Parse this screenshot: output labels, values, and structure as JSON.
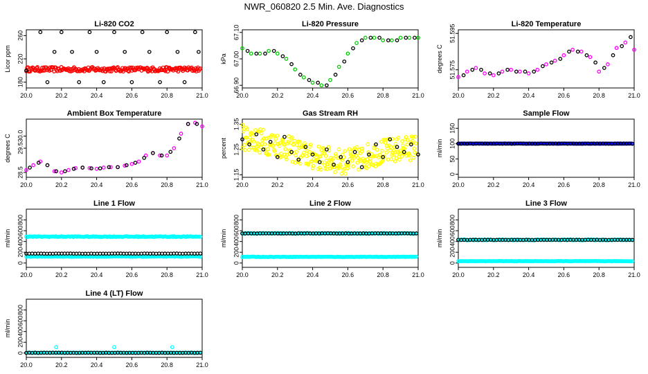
{
  "page_title": "NWR_060820  2.5 Min. Ave. Diagnostics",
  "colors": {
    "black": "#000000",
    "red": "#ff0000",
    "green": "#00cc00",
    "magenta": "#ff00ff",
    "yellow": "#ffff00",
    "blue": "#0000ff",
    "cyan": "#00ffff"
  },
  "chart_data": [
    {
      "id": "co2",
      "type": "scatter",
      "title": "Li-820 CO2",
      "ylabel": "Licor ppm",
      "xlim": [
        20.0,
        21.0
      ],
      "ylim": [
        170,
        270
      ],
      "yticks": [
        180,
        220,
        260
      ],
      "ytick_labels": [
        "180",
        "220",
        "260"
      ],
      "xticks": [
        20.0,
        20.2,
        20.4,
        20.6,
        20.8,
        21.0
      ],
      "xtick_labels": [
        "20.0",
        "20.2",
        "20.4",
        "20.6",
        "20.8",
        "21.0"
      ],
      "series": [
        {
          "color": "red",
          "marker": "circle",
          "n": 220,
          "y_center": 202,
          "y_spread": 4
        },
        {
          "color": "black",
          "marker": "circle",
          "x": [
            20.0,
            20.08,
            20.12,
            20.16,
            20.2,
            20.26,
            20.3,
            20.36,
            20.4,
            20.44,
            20.5,
            20.56,
            20.6,
            20.66,
            20.7,
            20.76,
            20.8,
            20.86,
            20.9,
            20.96,
            20.98
          ],
          "y": [
            200,
            266,
            180,
            232,
            266,
            232,
            180,
            266,
            232,
            180,
            266,
            232,
            180,
            266,
            232,
            180,
            266,
            232,
            180,
            266,
            232
          ]
        }
      ]
    },
    {
      "id": "pressure",
      "type": "scatter",
      "title": "Li-820 Pressure",
      "ylabel": "kPa",
      "xlim": [
        20.0,
        21.0
      ],
      "ylim": [
        66.89,
        67.11
      ],
      "yticks": [
        66.9,
        67.0,
        67.1
      ],
      "ytick_labels": [
        "66.90",
        "67.00",
        "67.10"
      ],
      "xticks": [
        20.0,
        20.2,
        20.4,
        20.6,
        20.8,
        21.0
      ],
      "xtick_labels": [
        "20.0",
        "20.2",
        "20.4",
        "20.6",
        "20.8",
        "21.0"
      ],
      "series": [
        {
          "color": "green",
          "marker": "circle",
          "x": [
            20.0,
            20.05,
            20.1,
            20.15,
            20.2,
            20.25,
            20.3,
            20.35,
            20.4,
            20.45,
            20.5,
            20.55,
            20.6,
            20.65,
            20.7,
            20.75,
            20.8,
            20.85,
            20.9,
            20.95,
            21.0
          ],
          "y": [
            67.04,
            67.02,
            67.02,
            67.03,
            67.02,
            67.0,
            66.96,
            66.93,
            66.91,
            66.9,
            66.92,
            66.97,
            67.02,
            67.06,
            67.08,
            67.08,
            67.07,
            67.07,
            67.08,
            67.08,
            67.08
          ]
        },
        {
          "color": "black",
          "marker": "circle",
          "x": [
            20.03,
            20.08,
            20.13,
            20.18,
            20.23,
            20.28,
            20.33,
            20.38,
            20.43,
            20.48,
            20.53,
            20.58,
            20.63,
            20.68,
            20.73,
            20.78,
            20.83,
            20.88,
            20.93,
            20.98
          ],
          "y": [
            67.03,
            67.02,
            67.02,
            67.03,
            67.01,
            66.98,
            66.94,
            66.92,
            66.91,
            66.9,
            66.94,
            66.99,
            67.04,
            67.07,
            67.08,
            67.08,
            67.07,
            67.07,
            67.08,
            67.08
          ]
        }
      ]
    },
    {
      "id": "temperature",
      "type": "scatter",
      "title": "Li-820 Temperature",
      "ylabel": "degrees C",
      "xlim": [
        20.0,
        21.0
      ],
      "ylim": [
        51.565,
        51.597
      ],
      "yticks": [
        51.575,
        51.595
      ],
      "ytick_labels": [
        "51.575",
        "51.595"
      ],
      "xticks": [
        20.0,
        20.2,
        20.4,
        20.6,
        20.8,
        21.0
      ],
      "xtick_labels": [
        "20.0",
        "20.2",
        "20.4",
        "20.6",
        "20.8",
        "21.0"
      ],
      "series": [
        {
          "color": "magenta",
          "marker": "circle",
          "x": [
            20.0,
            20.05,
            20.1,
            20.15,
            20.2,
            20.25,
            20.3,
            20.35,
            20.4,
            20.45,
            20.5,
            20.55,
            20.6,
            20.65,
            20.7,
            20.75,
            20.8,
            20.85,
            20.9,
            20.95,
            21.0
          ],
          "y": [
            51.571,
            51.574,
            51.576,
            51.573,
            51.572,
            51.574,
            51.575,
            51.574,
            51.573,
            51.575,
            51.578,
            51.58,
            51.583,
            51.586,
            51.585,
            51.582,
            51.574,
            51.578,
            51.587,
            51.59,
            51.586
          ]
        },
        {
          "color": "black",
          "marker": "circle",
          "x": [
            20.03,
            20.08,
            20.13,
            20.18,
            20.23,
            20.28,
            20.33,
            20.38,
            20.43,
            20.48,
            20.53,
            20.58,
            20.63,
            20.68,
            20.73,
            20.78,
            20.83,
            20.88,
            20.93,
            20.98
          ],
          "y": [
            51.572,
            51.575,
            51.575,
            51.573,
            51.573,
            51.575,
            51.574,
            51.574,
            51.574,
            51.577,
            51.579,
            51.581,
            51.585,
            51.585,
            51.583,
            51.579,
            51.576,
            51.583,
            51.588,
            51.593
          ]
        }
      ]
    },
    {
      "id": "ambient",
      "type": "scatter",
      "title": "Ambient Box Temperature",
      "ylabel": "degrees C",
      "xlim": [
        20.0,
        21.0
      ],
      "ylim": [
        28.3,
        30.7
      ],
      "yticks": [
        28.5,
        29.5,
        30.0
      ],
      "ytick_labels": [
        "28.5",
        "29.5",
        "30.0"
      ],
      "xticks": [
        20.0,
        20.2,
        20.4,
        20.6,
        20.8,
        21.0
      ],
      "xtick_labels": [
        "20.0",
        "20.2",
        "20.4",
        "20.6",
        "20.8",
        "21.0"
      ],
      "series": [
        {
          "color": "magenta",
          "marker": "circle",
          "x": [
            20.0,
            20.04,
            20.08,
            20.12,
            20.16,
            20.2,
            20.24,
            20.28,
            20.32,
            20.36,
            20.4,
            20.44,
            20.48,
            20.52,
            20.56,
            20.6,
            20.64,
            20.68,
            20.72,
            20.76,
            20.8,
            20.84,
            20.88,
            20.92,
            20.96,
            21.0
          ],
          "y": [
            28.6,
            28.8,
            28.95,
            28.8,
            28.55,
            28.5,
            28.6,
            28.68,
            28.7,
            28.68,
            28.65,
            28.7,
            28.72,
            28.72,
            28.78,
            28.85,
            28.95,
            29.2,
            29.3,
            29.2,
            29.2,
            29.5,
            30.1,
            30.5,
            30.55,
            30.4
          ]
        },
        {
          "color": "black",
          "marker": "circle",
          "x": [
            20.02,
            20.07,
            20.12,
            20.17,
            20.22,
            20.27,
            20.32,
            20.37,
            20.42,
            20.47,
            20.52,
            20.57,
            20.62,
            20.67,
            20.72,
            20.77,
            20.82,
            20.87,
            20.92,
            20.97
          ],
          "y": [
            28.7,
            28.9,
            28.8,
            28.55,
            28.55,
            28.65,
            28.7,
            28.67,
            28.67,
            28.72,
            28.72,
            28.8,
            28.9,
            29.1,
            29.3,
            29.2,
            29.35,
            29.9,
            30.5,
            30.5
          ]
        }
      ]
    },
    {
      "id": "rh",
      "type": "scatter",
      "title": "Gas Stream RH",
      "ylabel": "percent",
      "xlim": [
        20.0,
        21.0
      ],
      "ylim": [
        1.14,
        1.37
      ],
      "yticks": [
        1.15,
        1.25,
        1.35
      ],
      "ytick_labels": [
        "1.15",
        "1.25",
        "1.35"
      ],
      "xticks": [
        20.0,
        20.2,
        20.4,
        20.6,
        20.8,
        21.0
      ],
      "xtick_labels": [
        "20.0",
        "20.2",
        "20.4",
        "20.6",
        "20.8",
        "21.0"
      ],
      "series": [
        {
          "color": "yellow",
          "marker": "circle",
          "n": 320,
          "y_trend": [
            1.3,
            1.27,
            1.22,
            1.2,
            1.24,
            1.26
          ],
          "y_spread": 0.05
        },
        {
          "color": "black",
          "marker": "circle",
          "x": [
            20.0,
            20.04,
            20.08,
            20.12,
            20.16,
            20.2,
            20.24,
            20.28,
            20.32,
            20.36,
            20.4,
            20.44,
            20.48,
            20.52,
            20.56,
            20.6,
            20.64,
            20.68,
            20.72,
            20.76,
            20.8,
            20.84,
            20.88,
            20.92,
            20.96,
            21.0
          ],
          "y": [
            1.29,
            1.27,
            1.31,
            1.25,
            1.28,
            1.22,
            1.3,
            1.24,
            1.21,
            1.26,
            1.23,
            1.2,
            1.25,
            1.19,
            1.22,
            1.2,
            1.24,
            1.18,
            1.23,
            1.27,
            1.22,
            1.29,
            1.26,
            1.24,
            1.27,
            1.23
          ]
        }
      ]
    },
    {
      "id": "sample_flow",
      "type": "scatter",
      "title": "Sample Flow",
      "ylabel": "ml/min",
      "xlim": [
        20.0,
        21.0
      ],
      "ylim": [
        -10,
        180
      ],
      "yticks": [
        0,
        50,
        100,
        150
      ],
      "ytick_labels": [
        "0",
        "50",
        "100",
        "150"
      ],
      "xticks": [
        20.0,
        20.2,
        20.4,
        20.6,
        20.8,
        21.0
      ],
      "xtick_labels": [
        "20.0",
        "20.2",
        "20.4",
        "20.6",
        "20.8",
        "21.0"
      ],
      "series": [
        {
          "color": "blue",
          "marker": "circle",
          "n": 160,
          "y_center": 100,
          "y_spread": 0.5
        },
        {
          "color": "black",
          "marker": "circle",
          "n": 60,
          "y_center": 100,
          "y_spread": 0.5
        }
      ]
    },
    {
      "id": "line1",
      "type": "scatter",
      "title": "Line 1 Flow",
      "ylabel": "ml/min",
      "xlim": [
        20.0,
        21.0
      ],
      "ylim": [
        -80,
        1000
      ],
      "yticks": [
        0,
        200,
        400,
        600,
        800
      ],
      "ytick_labels": [
        "0",
        "200",
        "400",
        "600",
        "800"
      ],
      "xticks": [
        20.0,
        20.2,
        20.4,
        20.6,
        20.8,
        21.0
      ],
      "xtick_labels": [
        "20.0",
        "20.2",
        "20.4",
        "20.6",
        "20.8",
        "21.0"
      ],
      "series": [
        {
          "color": "cyan",
          "marker": "circle",
          "n": 160,
          "y_center": 490,
          "y_spread": 8
        },
        {
          "color": "cyan",
          "marker": "circle",
          "n": 160,
          "y_center": 120,
          "y_spread": 4
        },
        {
          "color": "black",
          "marker": "circle",
          "n": 60,
          "y_center": 175,
          "y_spread": 2
        }
      ]
    },
    {
      "id": "line2",
      "type": "scatter",
      "title": "Line 2 Flow",
      "ylabel": "ml/min",
      "xlim": [
        20.0,
        21.0
      ],
      "ylim": [
        -80,
        1000
      ],
      "yticks": [
        0,
        200,
        400,
        600,
        800
      ],
      "ytick_labels": [
        "0",
        "200",
        "400",
        "600",
        "800"
      ],
      "xticks": [
        20.0,
        20.2,
        20.4,
        20.6,
        20.8,
        21.0
      ],
      "xtick_labels": [
        "20.0",
        "20.2",
        "20.4",
        "20.6",
        "20.8",
        "21.0"
      ],
      "series": [
        {
          "color": "cyan",
          "marker": "circle",
          "n": 160,
          "y_center": 550,
          "y_spread": 8
        },
        {
          "color": "cyan",
          "marker": "circle",
          "n": 160,
          "y_center": 115,
          "y_spread": 4
        },
        {
          "color": "black",
          "marker": "circle",
          "n": 60,
          "y_center": 550,
          "y_spread": 2
        }
      ]
    },
    {
      "id": "line3",
      "type": "scatter",
      "title": "Line 3 Flow",
      "ylabel": "ml/min",
      "xlim": [
        20.0,
        21.0
      ],
      "ylim": [
        -80,
        1000
      ],
      "yticks": [
        0,
        200,
        400,
        600,
        800
      ],
      "ytick_labels": [
        "0",
        "200",
        "400",
        "600",
        "800"
      ],
      "xticks": [
        20.0,
        20.2,
        20.4,
        20.6,
        20.8,
        21.0
      ],
      "xtick_labels": [
        "20.0",
        "20.2",
        "20.4",
        "20.6",
        "20.8",
        "21.0"
      ],
      "series": [
        {
          "color": "cyan",
          "marker": "circle",
          "n": 160,
          "y_center": 430,
          "y_spread": 8
        },
        {
          "color": "cyan",
          "marker": "circle",
          "n": 160,
          "y_center": 35,
          "y_spread": 3
        },
        {
          "color": "black",
          "marker": "circle",
          "n": 60,
          "y_center": 430,
          "y_spread": 2
        }
      ]
    },
    {
      "id": "line4",
      "type": "scatter",
      "title": "Line 4 (LT) Flow",
      "ylabel": "ml/min",
      "xlim": [
        20.0,
        21.0
      ],
      "ylim": [
        -80,
        1000
      ],
      "yticks": [
        0,
        200,
        400,
        600,
        800
      ],
      "ytick_labels": [
        "0",
        "200",
        "400",
        "600",
        "800"
      ],
      "xticks": [
        20.0,
        20.2,
        20.4,
        20.6,
        20.8,
        21.0
      ],
      "xtick_labels": [
        "20.0",
        "20.2",
        "20.4",
        "20.6",
        "20.8",
        "21.0"
      ],
      "series": [
        {
          "color": "cyan",
          "marker": "circle",
          "n": 160,
          "y_center": 5,
          "y_spread": 2
        },
        {
          "color": "cyan",
          "marker": "circle",
          "x": [
            20.17,
            20.5,
            20.83
          ],
          "y": [
            110,
            110,
            110
          ]
        },
        {
          "color": "black",
          "marker": "circle",
          "n": 60,
          "y_center": 5,
          "y_spread": 2
        }
      ]
    }
  ]
}
